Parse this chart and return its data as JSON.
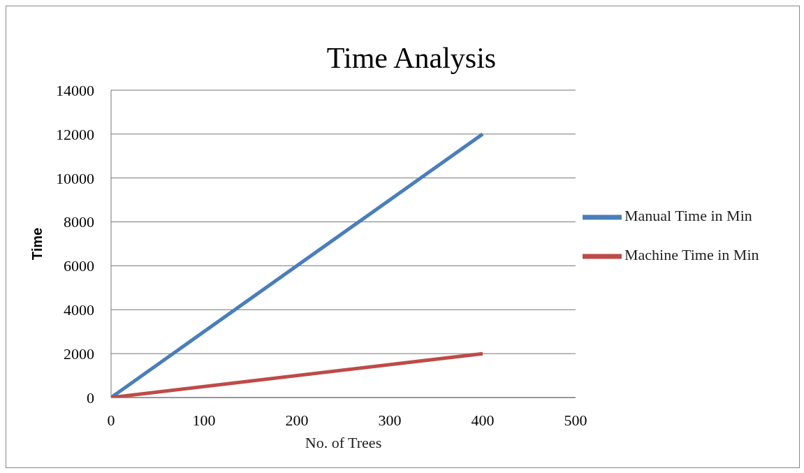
{
  "chart_data": {
    "type": "line",
    "title": "Time Analysis",
    "xlabel": "No. of Trees",
    "ylabel": "Time",
    "xlim": [
      0,
      500
    ],
    "xticks": [
      0,
      100,
      200,
      300,
      400,
      500
    ],
    "ylim": [
      0,
      14000
    ],
    "yticks": [
      0,
      2000,
      4000,
      6000,
      8000,
      10000,
      12000,
      14000
    ],
    "grid": "y",
    "legend": "right",
    "marker": "none",
    "line_style": "solid",
    "x": [
      0,
      400
    ],
    "series": [
      {
        "name": "Manual Time in Min",
        "color": "#4a7ebb",
        "values": [
          0,
          12000
        ]
      },
      {
        "name": "Machine Time in Min",
        "color": "#be4b48",
        "values": [
          0,
          2000
        ]
      }
    ]
  }
}
